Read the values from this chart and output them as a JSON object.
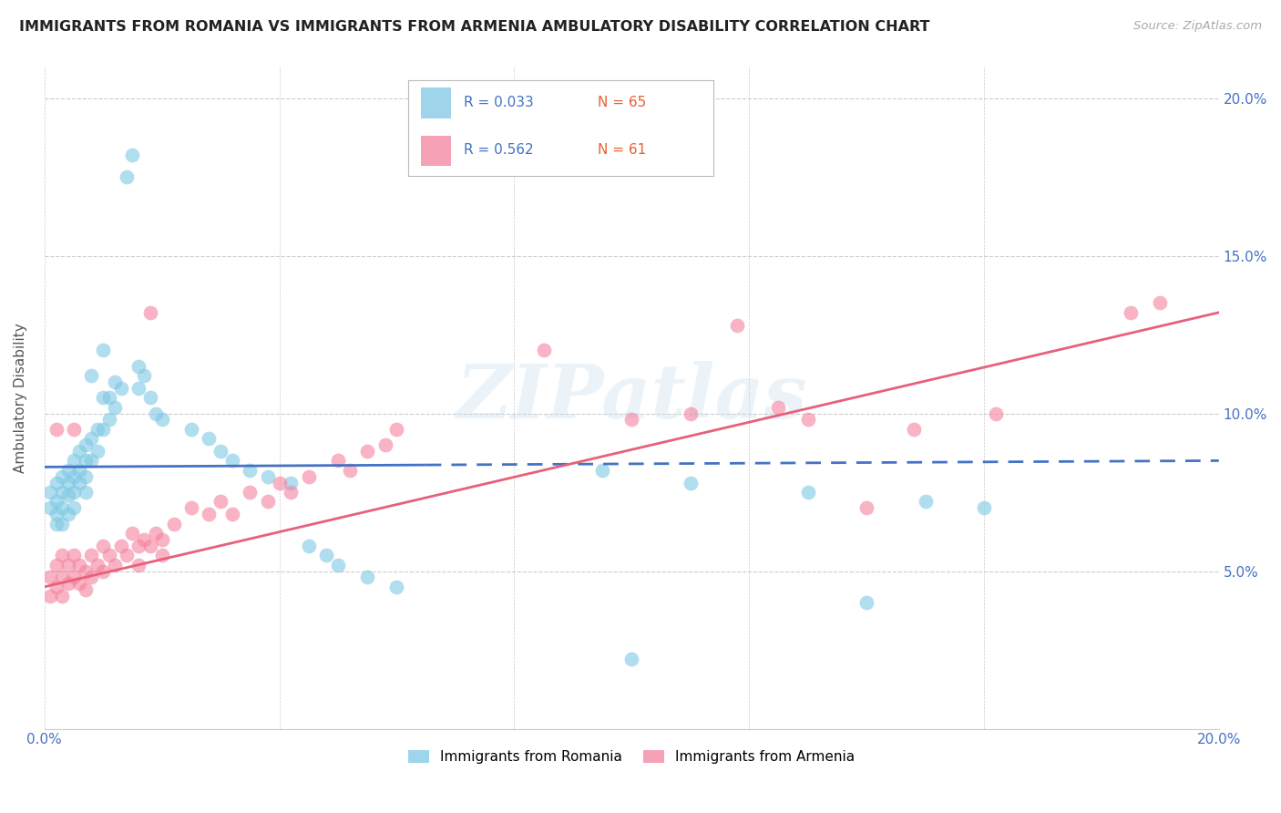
{
  "title": "IMMIGRANTS FROM ROMANIA VS IMMIGRANTS FROM ARMENIA AMBULATORY DISABILITY CORRELATION CHART",
  "source": "Source: ZipAtlas.com",
  "ylabel": "Ambulatory Disability",
  "xlim": [
    0.0,
    0.2
  ],
  "ylim": [
    0.0,
    0.21
  ],
  "romania_color": "#7ec8e3",
  "armenia_color": "#f4829e",
  "romania_line_color": "#4472c4",
  "armenia_line_color": "#e8607a",
  "romania_R": 0.033,
  "romania_N": 65,
  "armenia_R": 0.562,
  "armenia_N": 61,
  "watermark": "ZIPatlas",
  "romania_scatter": [
    [
      0.001,
      0.075
    ],
    [
      0.001,
      0.07
    ],
    [
      0.002,
      0.078
    ],
    [
      0.002,
      0.072
    ],
    [
      0.002,
      0.068
    ],
    [
      0.002,
      0.065
    ],
    [
      0.003,
      0.08
    ],
    [
      0.003,
      0.075
    ],
    [
      0.003,
      0.07
    ],
    [
      0.003,
      0.065
    ],
    [
      0.004,
      0.082
    ],
    [
      0.004,
      0.078
    ],
    [
      0.004,
      0.074
    ],
    [
      0.004,
      0.068
    ],
    [
      0.005,
      0.085
    ],
    [
      0.005,
      0.08
    ],
    [
      0.005,
      0.075
    ],
    [
      0.005,
      0.07
    ],
    [
      0.006,
      0.088
    ],
    [
      0.006,
      0.082
    ],
    [
      0.006,
      0.078
    ],
    [
      0.007,
      0.09
    ],
    [
      0.007,
      0.085
    ],
    [
      0.007,
      0.08
    ],
    [
      0.007,
      0.075
    ],
    [
      0.008,
      0.112
    ],
    [
      0.008,
      0.092
    ],
    [
      0.008,
      0.085
    ],
    [
      0.009,
      0.095
    ],
    [
      0.009,
      0.088
    ],
    [
      0.01,
      0.12
    ],
    [
      0.01,
      0.105
    ],
    [
      0.01,
      0.095
    ],
    [
      0.011,
      0.105
    ],
    [
      0.011,
      0.098
    ],
    [
      0.012,
      0.11
    ],
    [
      0.012,
      0.102
    ],
    [
      0.013,
      0.108
    ],
    [
      0.014,
      0.175
    ],
    [
      0.015,
      0.182
    ],
    [
      0.016,
      0.115
    ],
    [
      0.016,
      0.108
    ],
    [
      0.017,
      0.112
    ],
    [
      0.018,
      0.105
    ],
    [
      0.019,
      0.1
    ],
    [
      0.02,
      0.098
    ],
    [
      0.025,
      0.095
    ],
    [
      0.028,
      0.092
    ],
    [
      0.03,
      0.088
    ],
    [
      0.032,
      0.085
    ],
    [
      0.035,
      0.082
    ],
    [
      0.038,
      0.08
    ],
    [
      0.042,
      0.078
    ],
    [
      0.045,
      0.058
    ],
    [
      0.048,
      0.055
    ],
    [
      0.05,
      0.052
    ],
    [
      0.055,
      0.048
    ],
    [
      0.06,
      0.045
    ],
    [
      0.095,
      0.082
    ],
    [
      0.11,
      0.078
    ],
    [
      0.13,
      0.075
    ],
    [
      0.15,
      0.072
    ],
    [
      0.16,
      0.07
    ],
    [
      0.14,
      0.04
    ],
    [
      0.1,
      0.022
    ]
  ],
  "armenia_scatter": [
    [
      0.001,
      0.048
    ],
    [
      0.001,
      0.042
    ],
    [
      0.002,
      0.095
    ],
    [
      0.002,
      0.052
    ],
    [
      0.002,
      0.045
    ],
    [
      0.003,
      0.055
    ],
    [
      0.003,
      0.048
    ],
    [
      0.003,
      0.042
    ],
    [
      0.004,
      0.052
    ],
    [
      0.004,
      0.046
    ],
    [
      0.005,
      0.095
    ],
    [
      0.005,
      0.055
    ],
    [
      0.005,
      0.048
    ],
    [
      0.006,
      0.052
    ],
    [
      0.006,
      0.046
    ],
    [
      0.007,
      0.05
    ],
    [
      0.007,
      0.044
    ],
    [
      0.008,
      0.055
    ],
    [
      0.008,
      0.048
    ],
    [
      0.009,
      0.052
    ],
    [
      0.01,
      0.058
    ],
    [
      0.01,
      0.05
    ],
    [
      0.011,
      0.055
    ],
    [
      0.012,
      0.052
    ],
    [
      0.013,
      0.058
    ],
    [
      0.014,
      0.055
    ],
    [
      0.015,
      0.062
    ],
    [
      0.016,
      0.058
    ],
    [
      0.016,
      0.052
    ],
    [
      0.017,
      0.06
    ],
    [
      0.018,
      0.132
    ],
    [
      0.018,
      0.058
    ],
    [
      0.019,
      0.062
    ],
    [
      0.02,
      0.06
    ],
    [
      0.02,
      0.055
    ],
    [
      0.022,
      0.065
    ],
    [
      0.025,
      0.07
    ],
    [
      0.028,
      0.068
    ],
    [
      0.03,
      0.072
    ],
    [
      0.032,
      0.068
    ],
    [
      0.035,
      0.075
    ],
    [
      0.038,
      0.072
    ],
    [
      0.04,
      0.078
    ],
    [
      0.042,
      0.075
    ],
    [
      0.045,
      0.08
    ],
    [
      0.05,
      0.085
    ],
    [
      0.052,
      0.082
    ],
    [
      0.055,
      0.088
    ],
    [
      0.058,
      0.09
    ],
    [
      0.06,
      0.095
    ],
    [
      0.085,
      0.12
    ],
    [
      0.1,
      0.098
    ],
    [
      0.11,
      0.1
    ],
    [
      0.118,
      0.128
    ],
    [
      0.125,
      0.102
    ],
    [
      0.13,
      0.098
    ],
    [
      0.14,
      0.07
    ],
    [
      0.148,
      0.095
    ],
    [
      0.162,
      0.1
    ],
    [
      0.185,
      0.132
    ],
    [
      0.19,
      0.135
    ]
  ]
}
